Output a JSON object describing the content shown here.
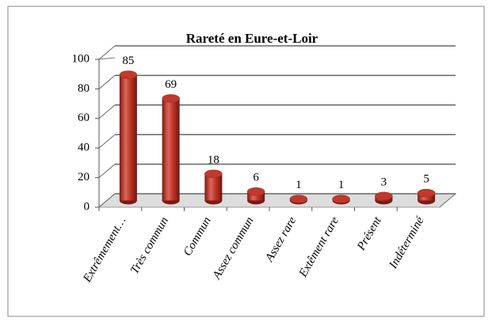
{
  "chart_data": {
    "type": "bar",
    "title": "Rareté en Eure-et-Loir",
    "categories": [
      "Extrêmement…",
      "Très commun",
      "Commun",
      "Assez commun",
      "Assez rare",
      "Extêment rare",
      "Présent",
      "Indéterminé"
    ],
    "values": [
      85,
      69,
      18,
      6,
      1,
      1,
      3,
      5
    ],
    "color": "#c0392b",
    "ylim": [
      0,
      100
    ],
    "yticks": [
      0,
      20,
      40,
      60,
      80,
      100
    ],
    "grid": true
  }
}
